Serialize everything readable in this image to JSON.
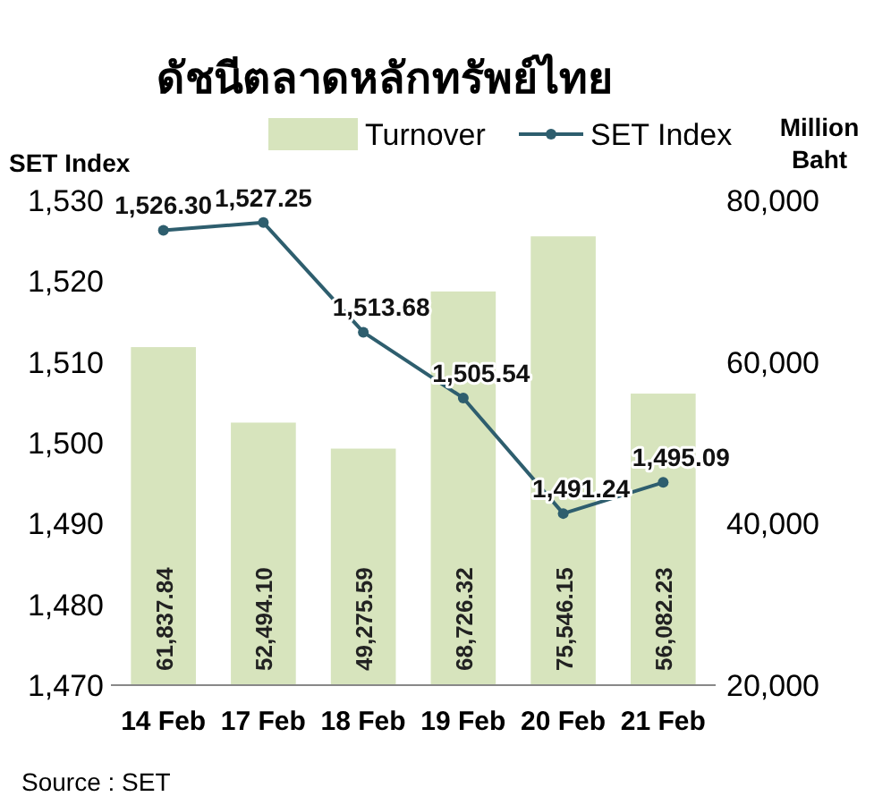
{
  "chart_data": {
    "type": "bar",
    "title": "ดัชนีตลาดหลักทรัพย์ไทย",
    "ylabel": "SET Index",
    "y2label": "Million\nBaht",
    "categories": [
      "14 Feb",
      "17 Feb",
      "18 Feb",
      "19 Feb",
      "20 Feb",
      "21 Feb"
    ],
    "series": [
      {
        "name": "Turnover",
        "axis": "y2",
        "color": "#d7e4bd",
        "values": [
          61837.84,
          52494.1,
          49275.59,
          68726.32,
          75546.15,
          56082.23
        ],
        "value_labels": [
          "61,837.84",
          "52,494.10",
          "49,275.59",
          "68,726.32",
          "75,546.15",
          "56,082.23"
        ]
      },
      {
        "name": "SET Index",
        "type": "line",
        "color": "#2e5e6e",
        "marker": "circle",
        "values": [
          1526.3,
          1527.25,
          1513.68,
          1505.54,
          1491.24,
          1495.09
        ],
        "value_labels": [
          "1,526.30",
          "1,527.25",
          "1,513.68",
          "1,505.54",
          "1,491.24",
          "1,495.09"
        ]
      }
    ],
    "ylim": [
      1470,
      1530
    ],
    "yticks": [
      {
        "value": 1470,
        "label": "1,470"
      },
      {
        "value": 1480,
        "label": "1,480"
      },
      {
        "value": 1490,
        "label": "1,490"
      },
      {
        "value": 1500,
        "label": "1,500"
      },
      {
        "value": 1510,
        "label": "1,510"
      },
      {
        "value": 1520,
        "label": "1,520"
      },
      {
        "value": 1530,
        "label": "1,530"
      }
    ],
    "y2lim": [
      20000,
      80000
    ],
    "y2ticks": [
      {
        "value": 20000,
        "label": "20,000"
      },
      {
        "value": 40000,
        "label": "40,000"
      },
      {
        "value": 60000,
        "label": "60,000"
      },
      {
        "value": 80000,
        "label": "80,000"
      }
    ],
    "legend": "top",
    "grid": false,
    "annotations": [
      "Source : SET"
    ]
  }
}
